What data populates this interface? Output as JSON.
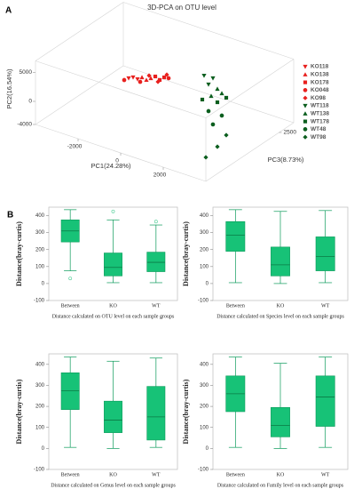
{
  "chart_data": [
    {
      "type": "scatter3d",
      "panel_label": "A",
      "title": "3D-PCA on OTU level",
      "xlabel": "PC1(24.28%)",
      "ylabel": "PC2(16.54%)",
      "zlabel": "PC3(8.73%)",
      "xlim": [
        -4000,
        4000
      ],
      "ylim": [
        -4000,
        7000
      ],
      "zlim": [
        0,
        3000
      ],
      "xticks": [
        -2000,
        0,
        2000
      ],
      "yticks": [
        -4000,
        0,
        5000
      ],
      "zticks": [
        2500
      ],
      "series": [
        {
          "name": "KO118",
          "color": "#e8201e",
          "marker": "v",
          "x": [
            -1687,
            -1479,
            -1271
          ],
          "y": [
            1769,
            2185,
            2123
          ],
          "z": [
            1500,
            1500,
            1500
          ]
        },
        {
          "name": "KO138",
          "color": "#e8201e",
          "marker": "^",
          "x": [
            -1062,
            -854,
            -646
          ],
          "y": [
            2692,
            2492,
            3046
          ],
          "z": [
            1500,
            1500,
            1500
          ]
        },
        {
          "name": "KO178",
          "color": "#e8201e",
          "marker": "s",
          "x": [
            -437,
            -229,
            -21
          ],
          "y": [
            3615,
            3262,
            3969
          ],
          "z": [
            1500,
            1500,
            1500
          ]
        },
        {
          "name": "KO048",
          "color": "#e8201e",
          "marker": "o",
          "x": [
            188,
            -1896,
            -1146
          ],
          "y": [
            4077,
            1200,
            1815
          ],
          "z": [
            1500,
            1500,
            1500
          ]
        },
        {
          "name": "KO98",
          "color": "#e8201e",
          "marker": "D",
          "x": [
            -729,
            -312,
            104
          ],
          "y": [
            3415,
            2846,
            4585
          ],
          "z": [
            1500,
            1500,
            1500
          ]
        },
        {
          "name": "WT118",
          "color": "#0b5e1e",
          "marker": "v",
          "x": [
            1854,
            2271,
            2063
          ],
          "y": [
            6585,
            6646,
            5308
          ],
          "z": [
            1500,
            1500,
            1500
          ]
        },
        {
          "name": "WT138",
          "color": "#0b5e1e",
          "marker": "^",
          "x": [
            2479,
            2688,
            2188
          ],
          "y": [
            5046,
            4538,
            3462
          ],
          "z": [
            1500,
            1500,
            1500
          ]
        },
        {
          "name": "WT178",
          "color": "#0b5e1e",
          "marker": "s",
          "x": [
            1771,
            2479,
            2896
          ],
          "y": [
            2338,
            2738,
            4031
          ],
          "z": [
            1500,
            1500,
            1500
          ]
        },
        {
          "name": "WT48",
          "color": "#0b5e1e",
          "marker": "o",
          "x": [
            3025,
            3650,
            3233
          ],
          "y": [
            4246,
            4246,
            2200
          ],
          "z": [
            800,
            800,
            800
          ]
        },
        {
          "name": "WT98",
          "color": "#0b5e1e",
          "marker": "D",
          "x": [
            3858,
            3442,
            2900
          ],
          "y": [
            1123,
            -1400,
            -3900
          ],
          "z": [
            800,
            800,
            800
          ]
        }
      ]
    },
    {
      "type": "box",
      "panel_label": "B",
      "ylabel": "Distance(bray-curtis)",
      "xlabel": "Distance calculated on OTU level on each sample groups",
      "categories": [
        "Between",
        "KO",
        "WT"
      ],
      "ylim": [
        -100,
        450
      ],
      "yticks": [
        -100,
        0,
        100,
        200,
        300,
        400
      ],
      "color": "#17c277",
      "boxes": [
        {
          "whislo": 75,
          "q1": 245,
          "med": 310,
          "q3": 375,
          "whishi": 435,
          "fliers": [
            30
          ]
        },
        {
          "whislo": 5,
          "q1": 45,
          "med": 95,
          "q3": 180,
          "whishi": 375,
          "fliers": [
            425
          ]
        },
        {
          "whislo": 5,
          "q1": 70,
          "med": 125,
          "q3": 185,
          "whishi": 345,
          "fliers": [
            365
          ]
        }
      ]
    },
    {
      "type": "box",
      "ylabel": "Distance(bray-curtis)",
      "xlabel": "Distance calculated on Species level on each sample groups",
      "categories": [
        "Between",
        "KO",
        "WT"
      ],
      "ylim": [
        -100,
        450
      ],
      "yticks": [
        -100,
        0,
        100,
        200,
        300,
        400
      ],
      "color": "#17c277",
      "boxes": [
        {
          "whislo": 5,
          "q1": 190,
          "med": 285,
          "q3": 365,
          "whishi": 435,
          "fliers": []
        },
        {
          "whislo": 0,
          "q1": 45,
          "med": 110,
          "q3": 215,
          "whishi": 425,
          "fliers": []
        },
        {
          "whislo": 5,
          "q1": 75,
          "med": 160,
          "q3": 275,
          "whishi": 430,
          "fliers": []
        }
      ]
    },
    {
      "type": "box",
      "ylabel": "Distance(bray-curtis)",
      "xlabel": "Distance calculated on Genus level on each sample groups",
      "categories": [
        "Between",
        "KO",
        "WT"
      ],
      "ylim": [
        -100,
        450
      ],
      "yticks": [
        -100,
        0,
        100,
        200,
        300,
        400
      ],
      "color": "#17c277",
      "boxes": [
        {
          "whislo": 5,
          "q1": 185,
          "med": 275,
          "q3": 360,
          "whishi": 435,
          "fliers": []
        },
        {
          "whislo": 0,
          "q1": 75,
          "med": 135,
          "q3": 225,
          "whishi": 415,
          "fliers": []
        },
        {
          "whislo": 5,
          "q1": 40,
          "med": 150,
          "q3": 295,
          "whishi": 430,
          "fliers": []
        }
      ]
    },
    {
      "type": "box",
      "ylabel": "Distance(bray-curtis)",
      "xlabel": "Distance calculated on Family level on each sample groups",
      "categories": [
        "Between",
        "KO",
        "WT"
      ],
      "ylim": [
        -100,
        450
      ],
      "yticks": [
        -100,
        0,
        100,
        200,
        300,
        400
      ],
      "color": "#17c277",
      "boxes": [
        {
          "whislo": 5,
          "q1": 175,
          "med": 260,
          "q3": 345,
          "whishi": 435,
          "fliers": []
        },
        {
          "whislo": 0,
          "q1": 55,
          "med": 110,
          "q3": 195,
          "whishi": 405,
          "fliers": []
        },
        {
          "whislo": 5,
          "q1": 105,
          "med": 245,
          "q3": 345,
          "whishi": 435,
          "fliers": []
        }
      ]
    }
  ]
}
